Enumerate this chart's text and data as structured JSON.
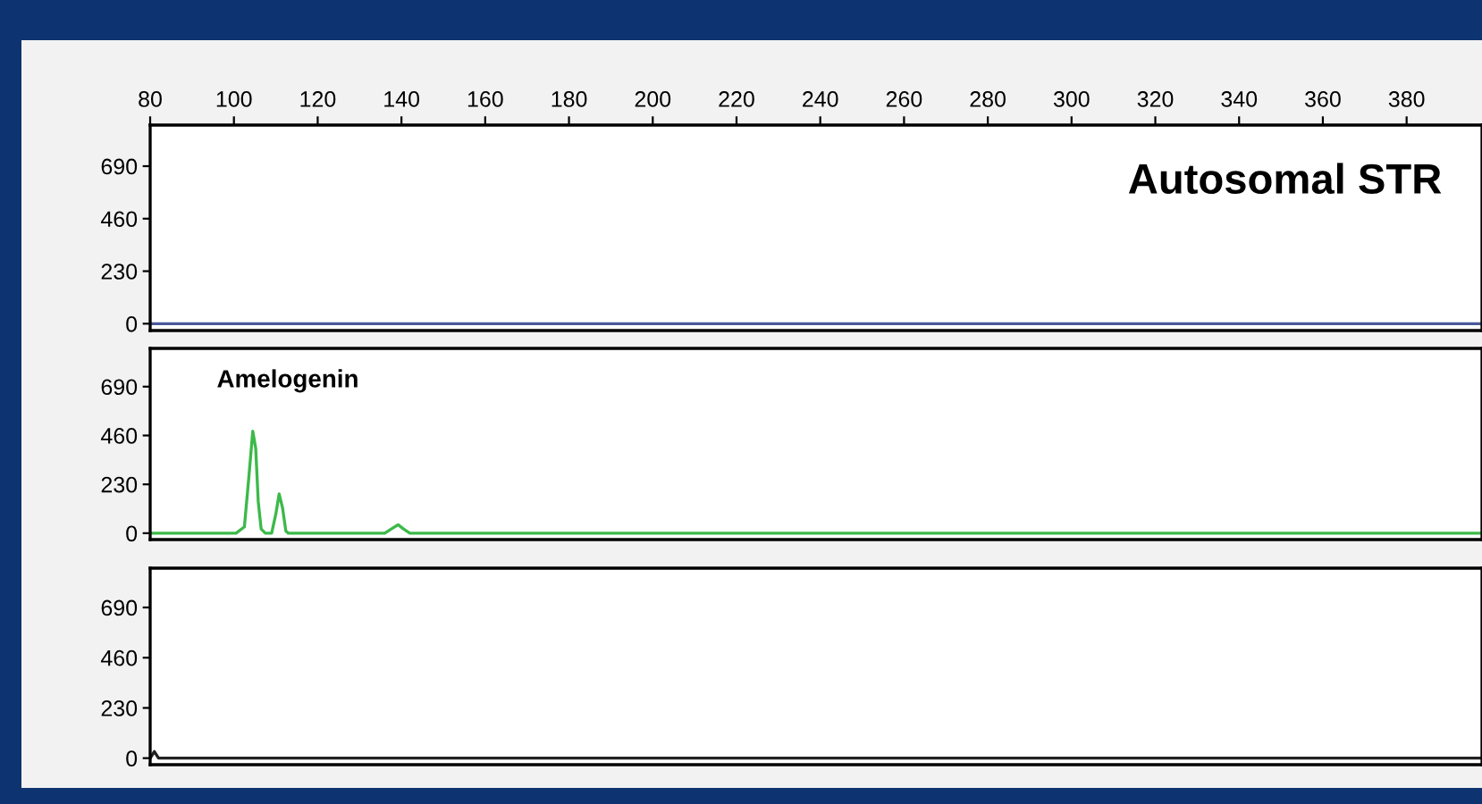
{
  "chart_data": [
    {
      "type": "line",
      "annotations": [
        "Autosomal STR"
      ],
      "x": [
        80,
        398
      ],
      "series": [
        {
          "color": "#4a5a9a",
          "values": [
            0,
            0
          ]
        }
      ],
      "xlim": [
        80,
        398
      ],
      "xticks": [
        80,
        100,
        120,
        140,
        160,
        180,
        200,
        220,
        240,
        260,
        280,
        300,
        320,
        340,
        360,
        380
      ],
      "ylim": [
        -30,
        870
      ],
      "yticks": [
        0,
        230,
        460,
        690
      ],
      "grid": false,
      "legend": false
    },
    {
      "type": "line",
      "annotations": [
        "Amelogenin"
      ],
      "x": [
        80,
        100.5,
        102.5,
        103.5,
        104.5,
        105.2,
        105.8,
        106.5,
        107.5,
        109,
        110,
        110.8,
        111.6,
        112.4,
        113,
        136,
        138,
        139.2,
        140.5,
        142,
        398
      ],
      "series": [
        {
          "color": "#3cb94a",
          "values": [
            0,
            0,
            30,
            250,
            480,
            400,
            150,
            20,
            0,
            0,
            90,
            185,
            120,
            10,
            0,
            0,
            25,
            40,
            20,
            0,
            0
          ]
        }
      ],
      "xlim": [
        80,
        398
      ],
      "ylim": [
        -30,
        870
      ],
      "yticks": [
        0,
        230,
        460,
        690
      ],
      "tick_labels": "y",
      "grid": false,
      "legend": false
    },
    {
      "type": "line",
      "x": [
        80,
        81,
        82,
        83,
        398
      ],
      "series": [
        {
          "color": "#222222",
          "values": [
            0,
            30,
            0,
            0,
            0
          ]
        }
      ],
      "xlim": [
        80,
        398
      ],
      "ylim": [
        -30,
        870
      ],
      "yticks": [
        0,
        230,
        460,
        690
      ],
      "tick_labels": "y",
      "grid": false,
      "legend": false
    }
  ]
}
